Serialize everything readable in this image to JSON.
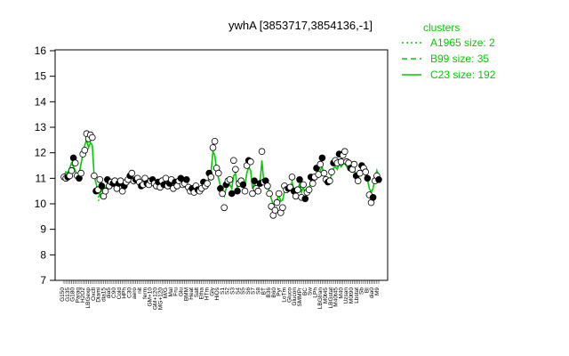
{
  "chart_data": {
    "type": "line",
    "title": "ywhA [3853717,3854136,-1]",
    "xlabel": "",
    "ylabel": "",
    "ylim": [
      7,
      16
    ],
    "yticks": [
      7,
      8,
      9,
      10,
      11,
      12,
      13,
      14,
      15,
      16
    ],
    "grid": false,
    "legend_title": "clusters",
    "legend_position": "top-right",
    "legend": [
      {
        "label": "A1965 size: 2",
        "style": "dotted"
      },
      {
        "label": "B99 size: 35",
        "style": "dashed"
      },
      {
        "label": "C23 size: 192",
        "style": "solid"
      }
    ],
    "series_color": "#00cc00",
    "x_labels": [
      "G150",
      "G135",
      "G180",
      "Paraq",
      "H2O2",
      "LBGexp",
      "Oxctl",
      "Diami",
      "dia15",
      "dia5",
      "C90",
      "Cold",
      "HPh",
      "C30",
      "aero",
      "nit",
      "ferm",
      "GM+10",
      "GM+120",
      "MG+120",
      "M/G",
      "Mal",
      "Fru",
      "Glu",
      "BMM",
      "Heat",
      "Salt",
      "Etha",
      "HTm",
      "Gly",
      "HiOs",
      "S1",
      "S2",
      "S3",
      "S4",
      "S5",
      "S6",
      "S7",
      "S8",
      "BT",
      "B36",
      "B60",
      "Pyr",
      "LoTm",
      "Gluco",
      "Glucon",
      "SMMPr",
      "BC",
      "Sw",
      "LPh",
      "LBGtran",
      "M0t45",
      "LBGstat",
      "M40t45",
      "M40",
      "Uzsan",
      "M0t90",
      "Lbstat",
      "Sb",
      "BI",
      "dia0",
      "M9"
    ],
    "points": [
      [
        1,
        11.05
      ],
      [
        2,
        11.0
      ],
      [
        3,
        11.05
      ],
      [
        4,
        11.1
      ],
      [
        5,
        11.3
      ],
      [
        6,
        11.8
      ],
      [
        7,
        11.6
      ],
      [
        8,
        11.1
      ],
      [
        9,
        11.0
      ],
      [
        10,
        11.2
      ],
      [
        11,
        11.95
      ],
      [
        12,
        12.1
      ],
      [
        13,
        12.75
      ],
      [
        14,
        12.55
      ],
      [
        15,
        12.7
      ],
      [
        16,
        12.6
      ],
      [
        17,
        11.1
      ],
      [
        18,
        10.5
      ],
      [
        19,
        10.55
      ],
      [
        20,
        10.95
      ],
      [
        21,
        10.7
      ],
      [
        22,
        10.3
      ],
      [
        23,
        10.5
      ],
      [
        24,
        10.95
      ],
      [
        25,
        10.7
      ],
      [
        26,
        10.85
      ],
      [
        27,
        10.8
      ],
      [
        28,
        10.9
      ],
      [
        29,
        10.6
      ],
      [
        30,
        10.8
      ],
      [
        31,
        10.9
      ],
      [
        32,
        10.5
      ],
      [
        33,
        10.7
      ],
      [
        34,
        10.85
      ],
      [
        35,
        10.95
      ],
      [
        36,
        11.1
      ],
      [
        37,
        11.2
      ],
      [
        38,
        10.9
      ],
      [
        39,
        10.95
      ],
      [
        40,
        11.0
      ],
      [
        41,
        10.85
      ],
      [
        42,
        10.7
      ],
      [
        43,
        10.75
      ],
      [
        44,
        11.0
      ],
      [
        45,
        10.8
      ],
      [
        46,
        10.75
      ],
      [
        47,
        10.9
      ],
      [
        48,
        10.95
      ],
      [
        49,
        10.8
      ],
      [
        50,
        10.7
      ],
      [
        51,
        10.85
      ],
      [
        52,
        10.65
      ],
      [
        53,
        10.9
      ],
      [
        54,
        10.75
      ],
      [
        55,
        11.0
      ],
      [
        56,
        10.7
      ],
      [
        57,
        10.8
      ],
      [
        58,
        10.95
      ],
      [
        59,
        10.6
      ],
      [
        60,
        10.85
      ],
      [
        61,
        10.7
      ],
      [
        62,
        10.9
      ],
      [
        63,
        11.0
      ],
      [
        64,
        10.75
      ],
      [
        65,
        10.8
      ],
      [
        66,
        10.95
      ],
      [
        67,
        10.65
      ],
      [
        68,
        10.5
      ],
      [
        69,
        10.6
      ],
      [
        70,
        10.45
      ],
      [
        71,
        10.7
      ],
      [
        72,
        10.55
      ],
      [
        73,
        10.5
      ],
      [
        74,
        10.6
      ],
      [
        75,
        10.85
      ],
      [
        76,
        10.7
      ],
      [
        77,
        10.8
      ],
      [
        78,
        11.2
      ],
      [
        79,
        11.05
      ],
      [
        80,
        12.2
      ],
      [
        81,
        12.45
      ],
      [
        82,
        11.4
      ],
      [
        83,
        11.2
      ],
      [
        84,
        10.6
      ],
      [
        85,
        10.4
      ],
      [
        86,
        9.85
      ],
      [
        87,
        10.75
      ],
      [
        88,
        10.9
      ],
      [
        89,
        10.95
      ],
      [
        90,
        10.4
      ],
      [
        91,
        11.7
      ],
      [
        92,
        11.35
      ],
      [
        93,
        10.5
      ],
      [
        94,
        10.8
      ],
      [
        95,
        10.9
      ],
      [
        96,
        10.75
      ],
      [
        97,
        10.5
      ],
      [
        98,
        11.5
      ],
      [
        99,
        11.7
      ],
      [
        100,
        11.65
      ],
      [
        101,
        10.4
      ],
      [
        102,
        10.9
      ],
      [
        103,
        10.6
      ],
      [
        104,
        10.5
      ],
      [
        105,
        10.8
      ],
      [
        106,
        12.05
      ],
      [
        107,
        10.85
      ],
      [
        108,
        10.9
      ],
      [
        109,
        10.7
      ],
      [
        110,
        10.4
      ],
      [
        111,
        9.9
      ],
      [
        112,
        9.55
      ],
      [
        113,
        9.75
      ],
      [
        114,
        10.05
      ],
      [
        115,
        10.4
      ],
      [
        116,
        9.65
      ],
      [
        117,
        9.85
      ],
      [
        118,
        10.7
      ],
      [
        119,
        10.55
      ],
      [
        120,
        10.6
      ],
      [
        121,
        10.65
      ],
      [
        122,
        11.05
      ],
      [
        123,
        10.5
      ],
      [
        124,
        10.3
      ],
      [
        125,
        10.55
      ],
      [
        126,
        10.95
      ],
      [
        127,
        10.25
      ],
      [
        128,
        10.75
      ],
      [
        129,
        10.2
      ],
      [
        130,
        10.45
      ],
      [
        131,
        10.55
      ],
      [
        132,
        11.05
      ],
      [
        133,
        10.8
      ],
      [
        134,
        11.05
      ],
      [
        135,
        11.4
      ],
      [
        136,
        11.15
      ],
      [
        137,
        11.55
      ],
      [
        138,
        11.8
      ],
      [
        139,
        11.2
      ],
      [
        140,
        10.95
      ],
      [
        141,
        10.85
      ],
      [
        142,
        10.9
      ],
      [
        143,
        11.25
      ],
      [
        144,
        11.6
      ],
      [
        145,
        11.7
      ],
      [
        146,
        11.6
      ],
      [
        147,
        11.95
      ],
      [
        148,
        11.65
      ],
      [
        149,
        11.9
      ],
      [
        150,
        12.05
      ],
      [
        151,
        11.65
      ],
      [
        152,
        11.6
      ],
      [
        153,
        11.4
      ],
      [
        154,
        11.35
      ],
      [
        155,
        11.55
      ],
      [
        156,
        11.1
      ],
      [
        157,
        10.9
      ],
      [
        158,
        11.2
      ],
      [
        159,
        11.5
      ],
      [
        160,
        11.4
      ],
      [
        161,
        11.25
      ],
      [
        162,
        11.0
      ],
      [
        163,
        10.35
      ],
      [
        164,
        10.05
      ],
      [
        165,
        10.25
      ],
      [
        166,
        10.9
      ],
      [
        167,
        11.1
      ],
      [
        168,
        10.95
      ]
    ],
    "line": [
      [
        1,
        11.1
      ],
      [
        2,
        11.25
      ],
      [
        3,
        11.2
      ],
      [
        4,
        11.4
      ],
      [
        5,
        11.6
      ],
      [
        6,
        11.45
      ],
      [
        7,
        11.3
      ],
      [
        8,
        11.1
      ],
      [
        9,
        11.2
      ],
      [
        10,
        11.55
      ],
      [
        11,
        11.95
      ],
      [
        12,
        12.3
      ],
      [
        13,
        12.5
      ],
      [
        14,
        12.2
      ],
      [
        15,
        12.4
      ],
      [
        16,
        12.3
      ],
      [
        17,
        11.1
      ],
      [
        18,
        10.8
      ],
      [
        19,
        10.5
      ],
      [
        20,
        10.3
      ],
      [
        21,
        10.6
      ],
      [
        22,
        10.35
      ],
      [
        23,
        10.6
      ],
      [
        24,
        10.8
      ],
      [
        25,
        10.65
      ],
      [
        26,
        10.85
      ],
      [
        27,
        10.75
      ],
      [
        28,
        10.9
      ],
      [
        29,
        10.7
      ],
      [
        30,
        10.9
      ],
      [
        31,
        10.8
      ],
      [
        32,
        10.6
      ],
      [
        33,
        10.85
      ],
      [
        34,
        10.75
      ],
      [
        35,
        10.9
      ],
      [
        36,
        10.85
      ],
      [
        37,
        10.95
      ],
      [
        38,
        10.8
      ],
      [
        39,
        10.9
      ],
      [
        40,
        10.85
      ],
      [
        41,
        10.9
      ],
      [
        42,
        10.8
      ],
      [
        43,
        10.85
      ],
      [
        44,
        10.9
      ],
      [
        45,
        10.85
      ],
      [
        46,
        10.8
      ],
      [
        47,
        10.85
      ],
      [
        48,
        10.9
      ],
      [
        49,
        10.8
      ],
      [
        50,
        10.85
      ],
      [
        51,
        10.8
      ],
      [
        52,
        10.75
      ],
      [
        53,
        10.85
      ],
      [
        54,
        10.8
      ],
      [
        55,
        10.85
      ],
      [
        56,
        10.75
      ],
      [
        57,
        10.8
      ],
      [
        58,
        10.85
      ],
      [
        59,
        10.7
      ],
      [
        60,
        10.8
      ],
      [
        61,
        10.75
      ],
      [
        62,
        10.8
      ],
      [
        63,
        10.85
      ],
      [
        64,
        10.75
      ],
      [
        65,
        10.8
      ],
      [
        66,
        10.8
      ],
      [
        67,
        10.65
      ],
      [
        68,
        10.6
      ],
      [
        69,
        10.55
      ],
      [
        70,
        10.5
      ],
      [
        71,
        10.6
      ],
      [
        72,
        10.55
      ],
      [
        73,
        10.55
      ],
      [
        74,
        10.6
      ],
      [
        75,
        10.75
      ],
      [
        76,
        10.7
      ],
      [
        77,
        10.8
      ],
      [
        78,
        11.0
      ],
      [
        79,
        11.2
      ],
      [
        80,
        12.05
      ],
      [
        81,
        11.9
      ],
      [
        82,
        11.3
      ],
      [
        83,
        11.0
      ],
      [
        84,
        10.7
      ],
      [
        85,
        10.45
      ],
      [
        86,
        10.3
      ],
      [
        87,
        10.6
      ],
      [
        88,
        10.8
      ],
      [
        89,
        10.75
      ],
      [
        90,
        10.6
      ],
      [
        91,
        11.1
      ],
      [
        92,
        11.2
      ],
      [
        93,
        10.6
      ],
      [
        94,
        10.8
      ],
      [
        95,
        10.85
      ],
      [
        96,
        10.75
      ],
      [
        97,
        10.7
      ],
      [
        98,
        11.2
      ],
      [
        99,
        11.45
      ],
      [
        100,
        11.3
      ],
      [
        101,
        10.6
      ],
      [
        102,
        10.8
      ],
      [
        103,
        10.65
      ],
      [
        104,
        10.6
      ],
      [
        105,
        10.85
      ],
      [
        106,
        11.7
      ],
      [
        107,
        10.85
      ],
      [
        108,
        10.85
      ],
      [
        109,
        10.7
      ],
      [
        110,
        10.5
      ],
      [
        111,
        10.2
      ],
      [
        112,
        9.95
      ],
      [
        113,
        10.05
      ],
      [
        114,
        10.15
      ],
      [
        115,
        10.35
      ],
      [
        116,
        10.1
      ],
      [
        117,
        10.15
      ],
      [
        118,
        10.5
      ],
      [
        119,
        10.5
      ],
      [
        120,
        10.55
      ],
      [
        121,
        10.6
      ],
      [
        122,
        10.85
      ],
      [
        123,
        10.55
      ],
      [
        124,
        10.45
      ],
      [
        125,
        10.55
      ],
      [
        126,
        10.8
      ],
      [
        127,
        10.45
      ],
      [
        128,
        10.65
      ],
      [
        129,
        10.4
      ],
      [
        130,
        10.5
      ],
      [
        131,
        10.55
      ],
      [
        132,
        10.9
      ],
      [
        133,
        10.8
      ],
      [
        134,
        10.95
      ],
      [
        135,
        11.15
      ],
      [
        136,
        11.05
      ],
      [
        137,
        11.3
      ],
      [
        138,
        11.45
      ],
      [
        139,
        11.1
      ],
      [
        140,
        10.95
      ],
      [
        141,
        10.9
      ],
      [
        142,
        10.95
      ],
      [
        143,
        11.15
      ],
      [
        144,
        11.4
      ],
      [
        145,
        11.45
      ],
      [
        146,
        11.35
      ],
      [
        147,
        11.6
      ],
      [
        148,
        11.45
      ],
      [
        149,
        11.55
      ],
      [
        150,
        11.6
      ],
      [
        151,
        11.45
      ],
      [
        152,
        11.4
      ],
      [
        153,
        11.3
      ],
      [
        154,
        11.25
      ],
      [
        155,
        11.35
      ],
      [
        156,
        11.1
      ],
      [
        157,
        10.95
      ],
      [
        158,
        11.15
      ],
      [
        159,
        11.3
      ],
      [
        160,
        11.3
      ],
      [
        161,
        11.15
      ],
      [
        162,
        10.95
      ],
      [
        163,
        10.6
      ],
      [
        164,
        10.45
      ],
      [
        165,
        10.6
      ],
      [
        166,
        11.0
      ],
      [
        167,
        11.3
      ],
      [
        168,
        11.1
      ]
    ],
    "x_count": 168
  }
}
